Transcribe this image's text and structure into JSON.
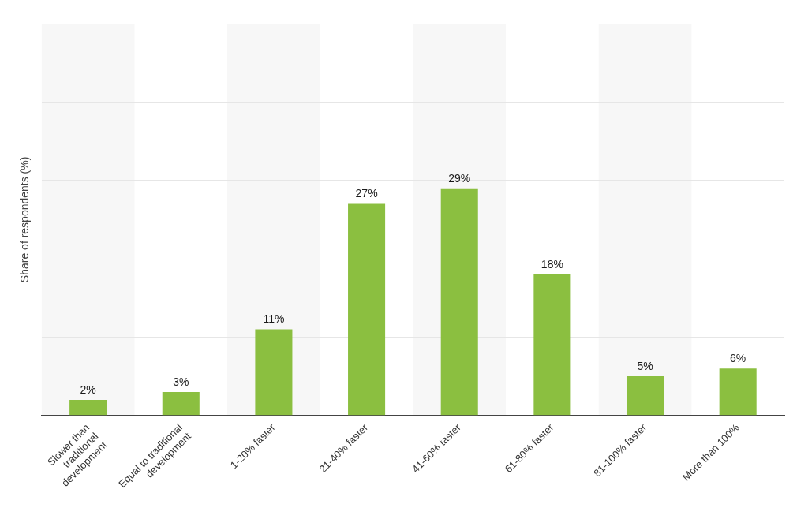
{
  "chart_data": {
    "type": "bar",
    "y_label": "Share of respondents (%)",
    "categories": [
      "Slower than traditional development",
      "Equal to traditional development",
      "1-20% faster",
      "21-40% faster",
      "41-60% taster",
      "61-80% faster",
      "81-100% faster",
      "More than 100%"
    ],
    "values": [
      2,
      3,
      11,
      27,
      29,
      18,
      5,
      6
    ],
    "value_labels": [
      "2%",
      "3%",
      "11%",
      "27%",
      "29%",
      "18%",
      "5%",
      "6%"
    ],
    "color": "#8bbf40",
    "ylim": [
      0,
      50
    ],
    "yticks": [
      0,
      10,
      20,
      30,
      40,
      50
    ],
    "grid": true,
    "data_labels": true,
    "tick_labels": "x"
  }
}
